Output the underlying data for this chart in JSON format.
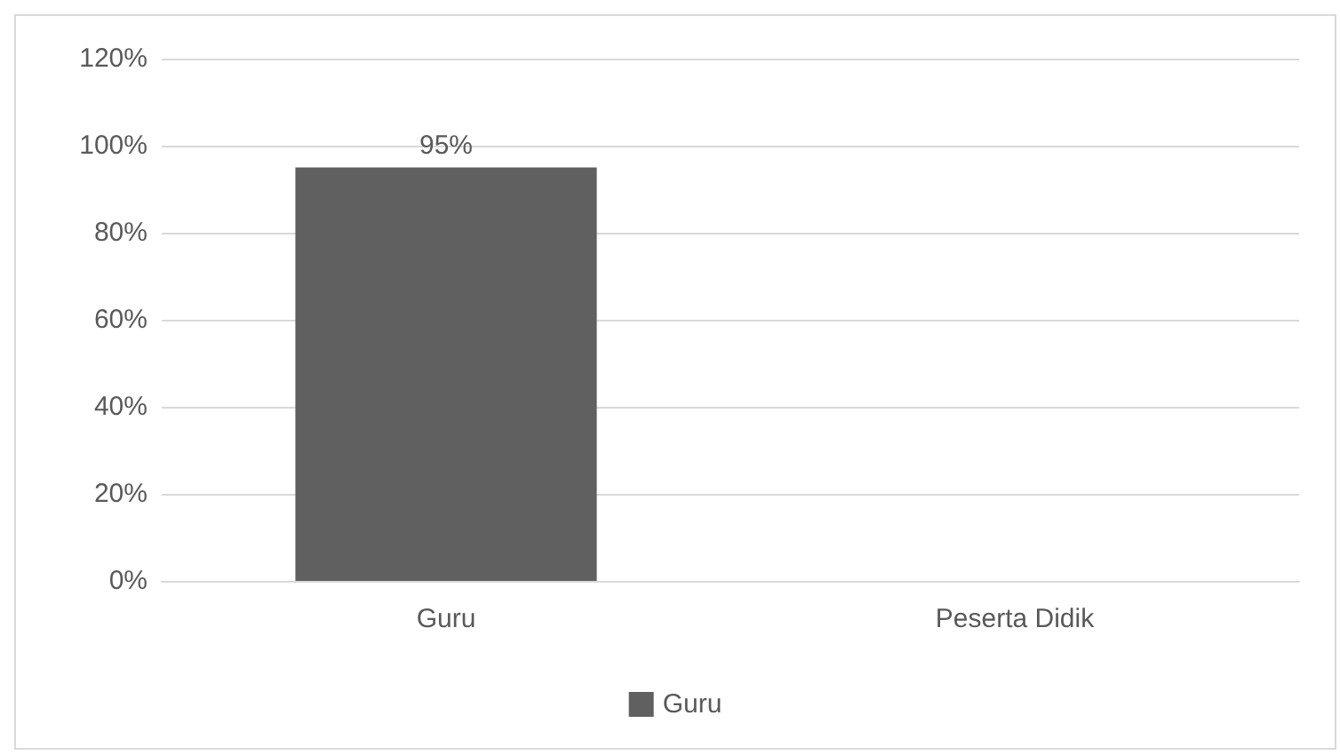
{
  "chart_data": {
    "type": "bar",
    "categories": [
      "Guru",
      "Peserta Didik"
    ],
    "series": [
      {
        "name": "Guru",
        "color": "#606060",
        "values": [
          95,
          null
        ],
        "value_labels": [
          "95%",
          null
        ]
      }
    ],
    "ylim": [
      0,
      120
    ],
    "yticks": [
      {
        "value": 0,
        "label": "0%"
      },
      {
        "value": 20,
        "label": "20%"
      },
      {
        "value": 40,
        "label": "40%"
      },
      {
        "value": 60,
        "label": "60%"
      },
      {
        "value": 80,
        "label": "80%"
      },
      {
        "value": 100,
        "label": "100%"
      },
      {
        "value": 120,
        "label": "120%"
      }
    ],
    "grid": "y",
    "legend": "bottom"
  }
}
